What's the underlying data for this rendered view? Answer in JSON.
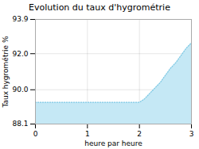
{
  "chart_data": {
    "type": "area",
    "title": "Evolution du taux d'hygrométrie",
    "xlabel": "heure par heure",
    "ylabel": "Taux hygrométrie %",
    "x": [
      0,
      0.5,
      1,
      1.5,
      2,
      2.1,
      2.2,
      2.3,
      2.4,
      2.5,
      2.6,
      2.7,
      2.8,
      2.9,
      3.0
    ],
    "values": [
      89.3,
      89.3,
      89.3,
      89.3,
      89.3,
      89.5,
      89.8,
      90.1,
      90.4,
      90.8,
      91.2,
      91.5,
      91.9,
      92.3,
      92.6
    ],
    "xlim": [
      0,
      3
    ],
    "ylim": [
      88.1,
      93.9
    ],
    "xticks": [
      0,
      1,
      2,
      3
    ],
    "yticks": [
      88.1,
      {
        "value": 90.0,
        "label": "90.0"
      },
      {
        "value": 92.0,
        "label": "92.0"
      },
      93.9
    ],
    "colors": [
      "#c5e8f5",
      "#7ec8e3"
    ],
    "line_style": "dotted",
    "grid": true
  }
}
